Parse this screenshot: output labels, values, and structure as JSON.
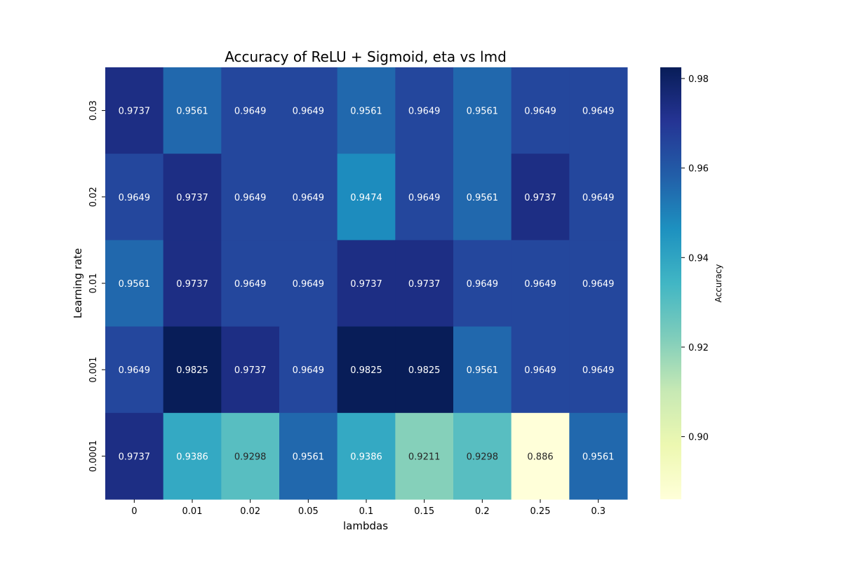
{
  "chart_data": {
    "type": "heatmap",
    "title": "Accuracy of ReLU + Sigmoid, eta vs lmd",
    "xlabel": "lambdas",
    "ylabel": "Learning rate",
    "x_categories": [
      "0",
      "0.01",
      "0.02",
      "0.05",
      "0.1",
      "0.15",
      "0.2",
      "0.25",
      "0.3"
    ],
    "y_categories": [
      "0.03",
      "0.02",
      "0.01",
      "0.001",
      "0.0001"
    ],
    "values": [
      [
        0.9737,
        0.9561,
        0.9649,
        0.9649,
        0.9561,
        0.9649,
        0.9561,
        0.9649,
        0.9649
      ],
      [
        0.9649,
        0.9737,
        0.9649,
        0.9649,
        0.9474,
        0.9649,
        0.9561,
        0.9737,
        0.9649
      ],
      [
        0.9561,
        0.9737,
        0.9649,
        0.9649,
        0.9737,
        0.9737,
        0.9649,
        0.9649,
        0.9649
      ],
      [
        0.9649,
        0.9825,
        0.9737,
        0.9649,
        0.9825,
        0.9825,
        0.9561,
        0.9649,
        0.9649
      ],
      [
        0.9737,
        0.9386,
        0.9298,
        0.9561,
        0.9386,
        0.9211,
        0.9298,
        0.886,
        0.9561
      ]
    ],
    "colormap": "YlGnBu",
    "colorbar": {
      "label": "Accuracy",
      "vmin": 0.886,
      "vmax": 0.9825,
      "ticks": [
        "0.90",
        "0.92",
        "0.94",
        "0.96",
        "0.98"
      ]
    },
    "annotations": true,
    "grid": false
  }
}
